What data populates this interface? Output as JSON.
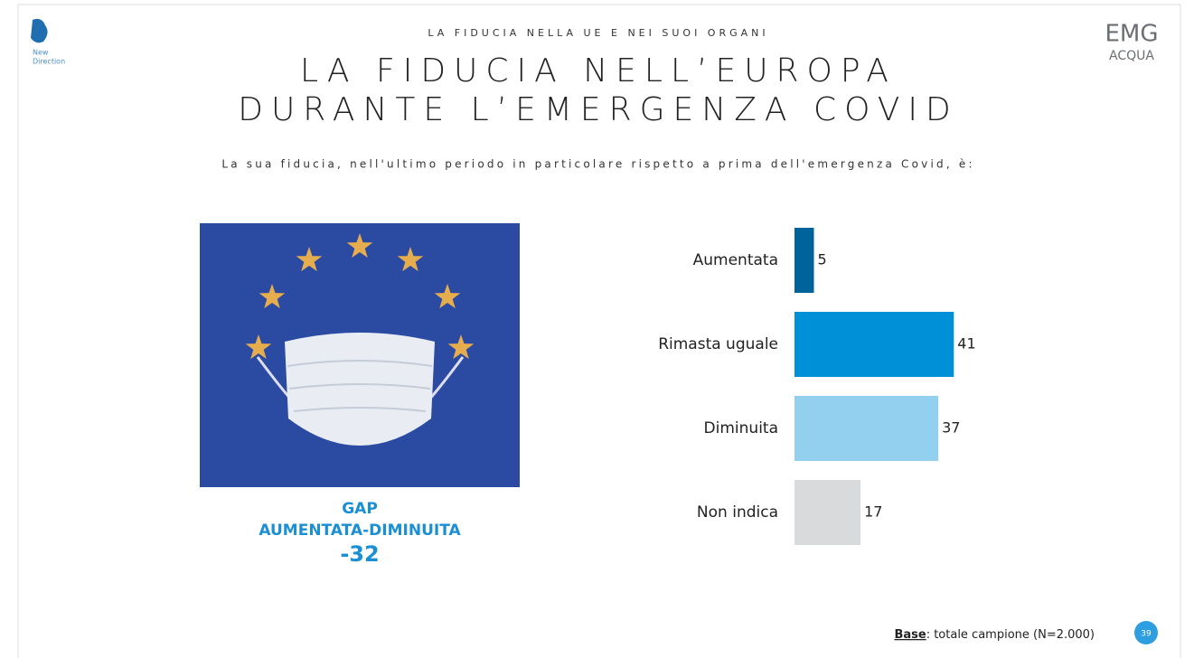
{
  "header": {
    "section": "LA FIDUCIA NELLA UE E NEI SUOI ORGANI",
    "title_lines": [
      "LA FIDUCIA NELL’EUROPA",
      "DURANTE L’EMERGENZA COVID"
    ],
    "question": "La sua fiducia, nell'ultimo periodo in particolare rispetto a prima dell'emergenza Covid, è:"
  },
  "logos": {
    "left": [
      "New",
      "Direction"
    ],
    "right": [
      "EMG",
      "ACQUA"
    ]
  },
  "gap": {
    "lines": [
      "GAP",
      "AUMENTATA-DIMINUITA"
    ],
    "value": "-32"
  },
  "footer": {
    "base_label": "Base",
    "base_text": ": totale campione (N=2.000)",
    "page": "39"
  },
  "chart_data": {
    "type": "bar",
    "orientation": "horizontal",
    "categories": [
      "Aumentata",
      "Rimasta uguale",
      "Diminuita",
      "Non indica"
    ],
    "values": [
      5,
      41,
      37,
      17
    ],
    "colors": [
      "#00649b",
      "#0090d8",
      "#93cfee",
      "#d9dadb"
    ]
  }
}
